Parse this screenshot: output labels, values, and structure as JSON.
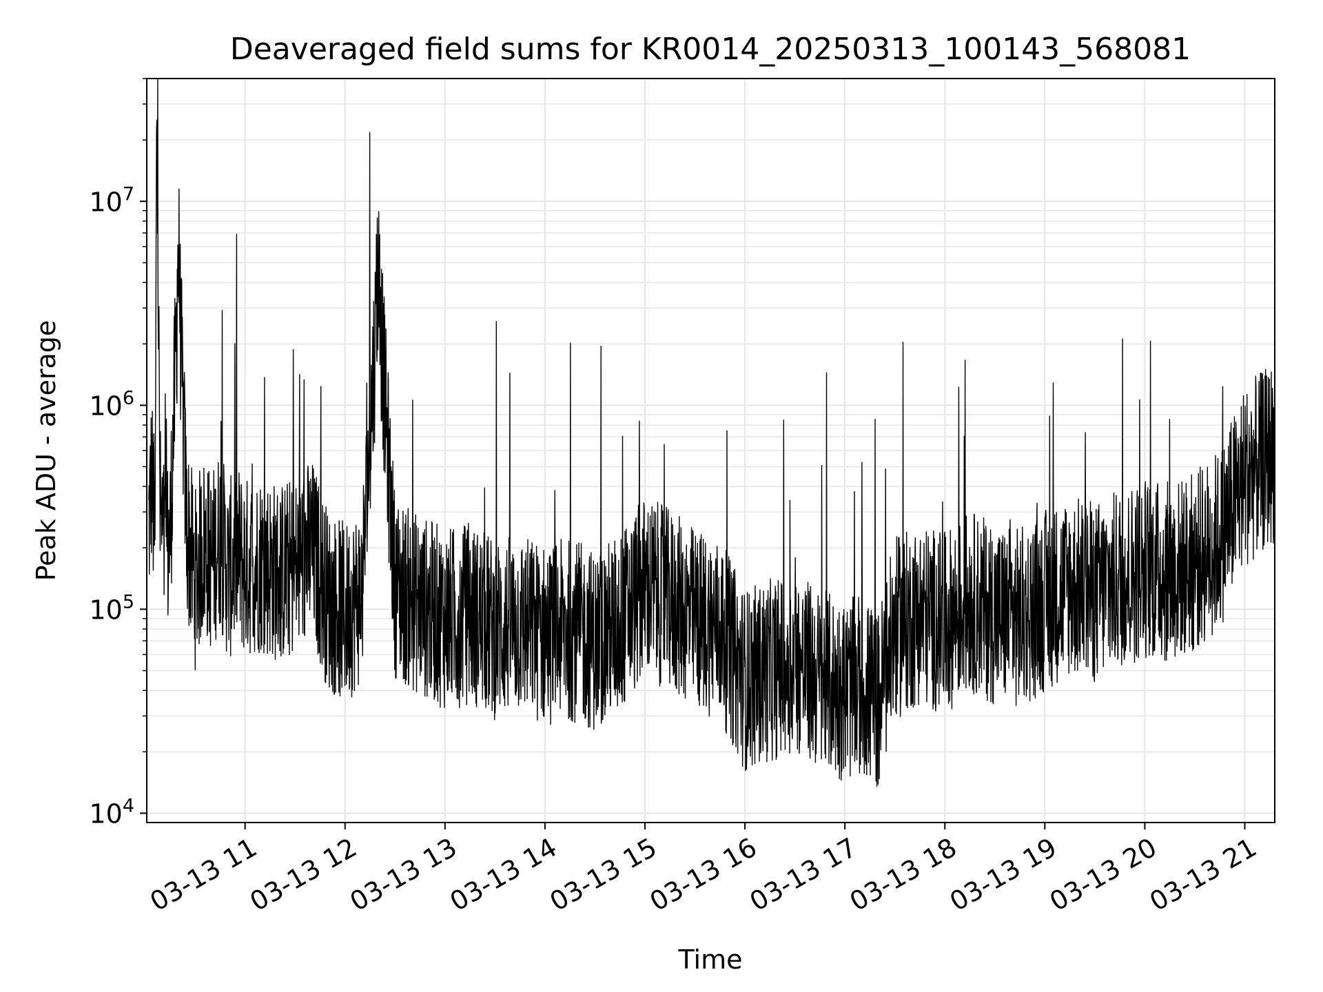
{
  "chart_data": {
    "type": "line",
    "title": "Deaveraged field sums for KR0014_20250313_100143_568081",
    "xlabel": "Time",
    "ylabel": "Peak ADU - average",
    "yscale": "log",
    "grid": true,
    "legend": "none",
    "line_color": "#000000",
    "grid_color": "#e6e6e6",
    "xlim": [
      "03-13 10:01",
      "03-13 21:18"
    ],
    "ylim": [
      9000,
      40000000
    ],
    "x_ticks": [
      "03-13 11",
      "03-13 12",
      "03-13 13",
      "03-13 14",
      "03-13 15",
      "03-13 16",
      "03-13 17",
      "03-13 18",
      "03-13 19",
      "03-13 20",
      "03-13 21"
    ],
    "y_ticks": [
      {
        "base": "10",
        "exp": "4",
        "value": 10000
      },
      {
        "base": "10",
        "exp": "5",
        "value": 100000
      },
      {
        "base": "10",
        "exp": "6",
        "value": 1000000
      },
      {
        "base": "10",
        "exp": "7",
        "value": 10000000
      }
    ],
    "series": [
      {
        "x": [
          "03-13 10:02",
          "03-13 10:04",
          "03-13 10:06",
          "03-13 10:07",
          "03-13 10:09",
          "03-13 10:12",
          "03-13 10:15",
          "03-13 10:20",
          "03-13 10:25",
          "03-13 10:30",
          "03-13 10:35",
          "03-13 10:40",
          "03-13 10:45",
          "03-13 10:50",
          "03-13 10:55",
          "03-13 11:00",
          "03-13 11:10",
          "03-13 11:20",
          "03-13 11:30",
          "03-13 11:40",
          "03-13 11:50",
          "03-13 12:00",
          "03-13 12:10",
          "03-13 12:20",
          "03-13 12:30",
          "03-13 12:40",
          "03-13 12:50",
          "03-13 13:00",
          "03-13 13:15",
          "03-13 13:30",
          "03-13 13:45",
          "03-13 14:00",
          "03-13 14:15",
          "03-13 14:30",
          "03-13 14:45",
          "03-13 15:00",
          "03-13 15:15",
          "03-13 15:30",
          "03-13 15:45",
          "03-13 16:00",
          "03-13 16:15",
          "03-13 16:30",
          "03-13 16:45",
          "03-13 17:00",
          "03-13 17:10",
          "03-13 17:20",
          "03-13 17:30",
          "03-13 17:45",
          "03-13 18:00",
          "03-13 18:15",
          "03-13 18:30",
          "03-13 18:45",
          "03-13 19:00",
          "03-13 19:15",
          "03-13 19:30",
          "03-13 19:45",
          "03-13 20:00",
          "03-13 20:15",
          "03-13 20:30",
          "03-13 20:45",
          "03-13 21:00",
          "03-13 21:10",
          "03-13 21:18"
        ],
        "y": [
          250000,
          450000,
          200000,
          29000000,
          300000,
          180000,
          220000,
          4700000,
          250000,
          140000,
          210000,
          170000,
          230000,
          150000,
          190000,
          160000,
          170000,
          150000,
          160000,
          200000,
          110000,
          95000,
          120000,
          4100000,
          130000,
          110000,
          100000,
          90000,
          95000,
          80000,
          85000,
          75000,
          80000,
          70000,
          85000,
          130000,
          110000,
          90000,
          80000,
          45000,
          50000,
          55000,
          45000,
          40000,
          42000,
          35000,
          80000,
          95000,
          85000,
          110000,
          95000,
          90000,
          110000,
          130000,
          120000,
          140000,
          160000,
          150000,
          170000,
          220000,
          450000,
          520000,
          600000
        ]
      }
    ]
  }
}
